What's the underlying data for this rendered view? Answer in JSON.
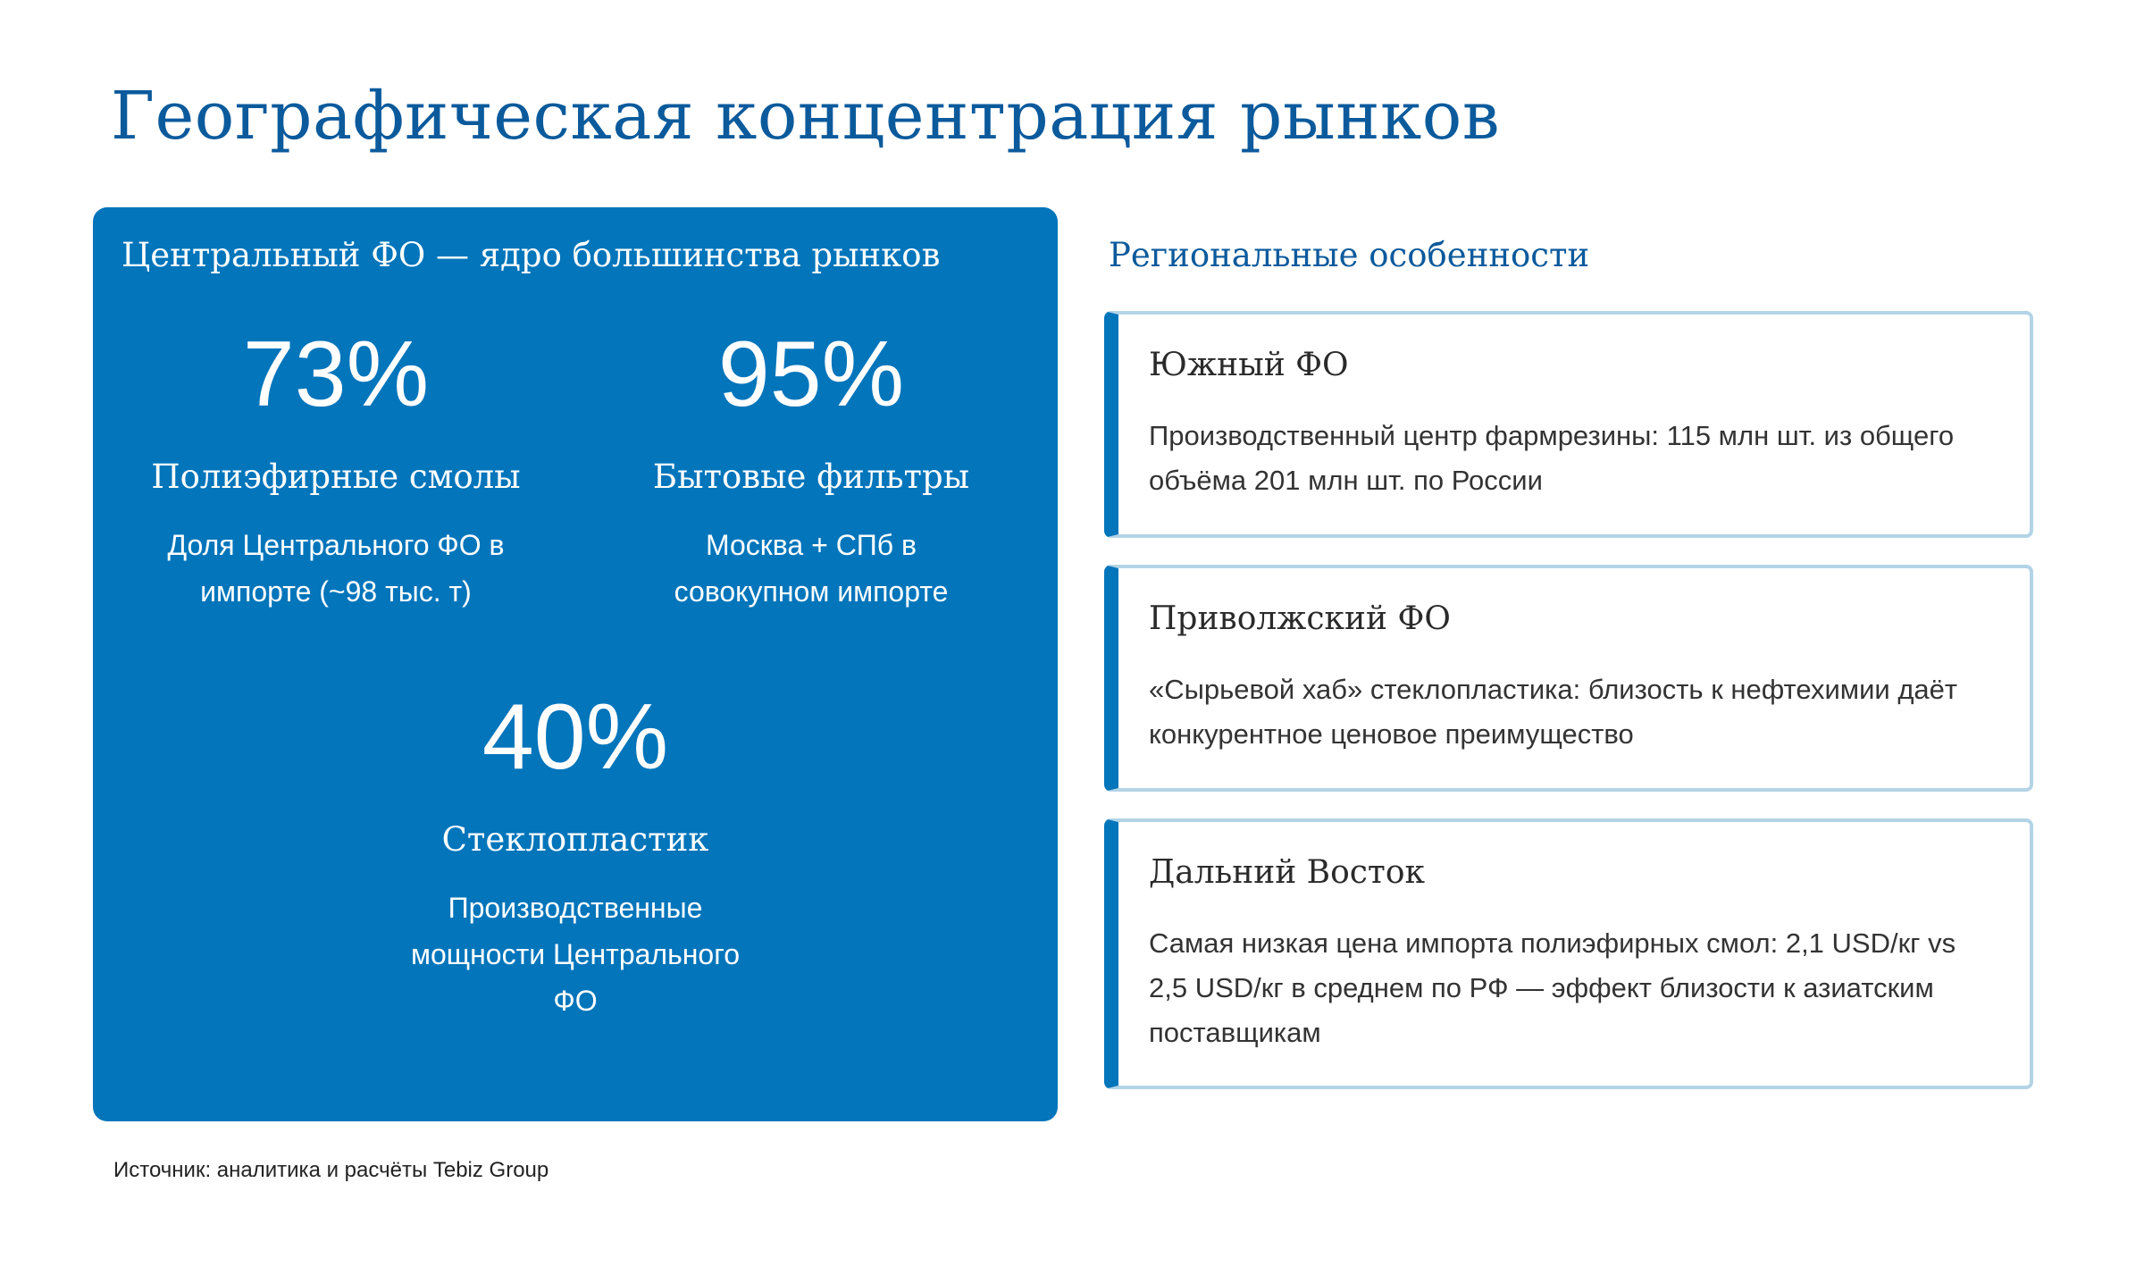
{
  "page": {
    "title": "Географическая концентрация рынков",
    "footnote": "Источник: аналитика и расчёты Tebiz Group"
  },
  "colors": {
    "title": "#0B5A9C",
    "panel_bg": "#0375BB",
    "card_accent": "#0375BB",
    "card_border": "#B3D4E6",
    "text_dark": "#2a2a2a"
  },
  "left_panel": {
    "heading": "Центральный ФО — ядро большинства рынков",
    "stats": [
      {
        "value": "73%",
        "label": "Полиэфирные смолы",
        "description": "Доля Центрального ФО в импорте (~98 тыс. т)"
      },
      {
        "value": "95%",
        "label": "Бытовые фильтры",
        "description": "Москва + СПб в совокупном импорте"
      },
      {
        "value": "40%",
        "label": "Стеклопластик",
        "description": "Производственные мощности Центрального ФО"
      }
    ]
  },
  "right_panel": {
    "heading": "Региональные особенности",
    "cards": [
      {
        "title": "Южный ФО",
        "body": "Производственный центр фармрезины: 115 млн шт. из общего объёма 201 млн шт. по России"
      },
      {
        "title": "Приволжский ФО",
        "body": "«Сырьевой хаб» стеклопластика: близость к нефтехимии даёт конкурентное ценовое преимущество"
      },
      {
        "title": "Дальний Восток",
        "body": "Самая низкая цена импорта полиэфирных смол: 2,1 USD/кг vs 2,5 USD/кг в среднем по РФ — эффект близости к азиатским поставщикам"
      }
    ]
  }
}
